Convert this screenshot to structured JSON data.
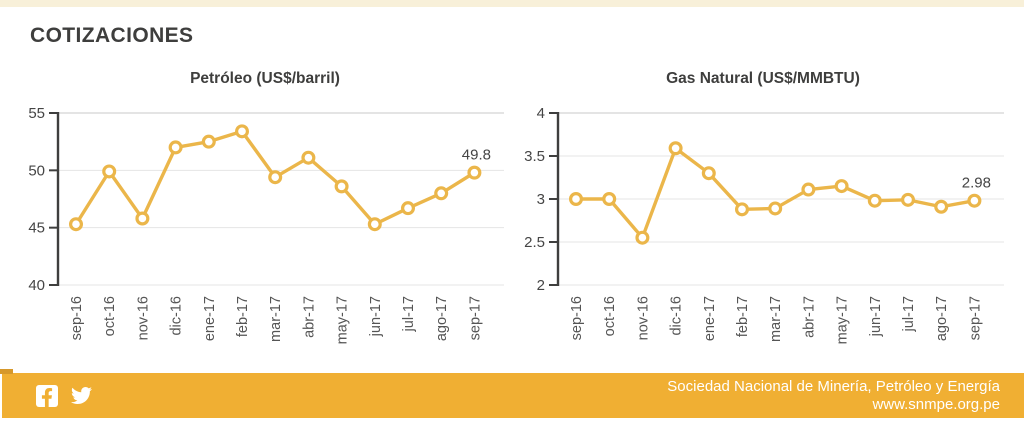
{
  "page": {
    "title": "COTIZACIONES",
    "top_strip_color": "#f8f0d9"
  },
  "chart_data": [
    {
      "type": "line",
      "title": "Petróleo (US$/barril)",
      "categories": [
        "sep-16",
        "oct-16",
        "nov-16",
        "dic-16",
        "ene-17",
        "feb-17",
        "mar-17",
        "abr-17",
        "may-17",
        "jun-17",
        "jul-17",
        "ago-17",
        "sep-17"
      ],
      "values": [
        45.3,
        49.9,
        45.8,
        52.0,
        52.5,
        53.4,
        49.4,
        51.1,
        48.6,
        45.3,
        46.7,
        48.0,
        49.8
      ],
      "ylim": [
        40,
        55
      ],
      "yticks": [
        40,
        45,
        50,
        55
      ],
      "last_value_label": "49.8",
      "line_color": "#ebb64a",
      "marker": "open-circle",
      "grid": true,
      "legend": false
    },
    {
      "type": "line",
      "title": "Gas Natural (US$/MMBTU)",
      "categories": [
        "sep-16",
        "oct-16",
        "nov-16",
        "dic-16",
        "ene-17",
        "feb-17",
        "mar-17",
        "abr-17",
        "may-17",
        "jun-17",
        "jul-17",
        "ago-17",
        "sep-17"
      ],
      "values": [
        3.0,
        3.0,
        2.55,
        3.59,
        3.3,
        2.88,
        2.89,
        3.11,
        3.15,
        2.98,
        2.99,
        2.91,
        2.98
      ],
      "ylim": [
        2,
        4
      ],
      "yticks": [
        2,
        2.5,
        3,
        3.5,
        4
      ],
      "last_value_label": "2.98",
      "line_color": "#ebb64a",
      "marker": "open-circle",
      "grid": true,
      "legend": false
    }
  ],
  "footer": {
    "org": "Sociedad Nacional de Minería, Petróleo y Energía",
    "url": "www.snmpe.org.pe",
    "bg_color": "#f0af33",
    "icons": [
      "facebook-icon",
      "twitter-icon"
    ]
  }
}
